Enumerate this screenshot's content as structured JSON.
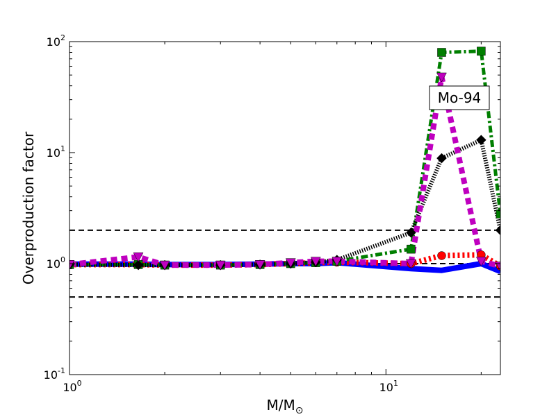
{
  "chart_data": {
    "type": "line",
    "xscale": "log",
    "yscale": "log",
    "xlim": [
      1,
      23
    ],
    "ylim": [
      0.1,
      100
    ],
    "xlabel_main": "M/M",
    "xlabel_sub": "⊙",
    "ylabel": "Overproduction factor",
    "annotation": "Mo-94",
    "xticks": [
      {
        "value": 1,
        "base": "10",
        "exp": "0"
      },
      {
        "value": 10,
        "base": "10",
        "exp": "1"
      }
    ],
    "yticks": [
      {
        "value": 0.1,
        "base": "10",
        "exp": "-1"
      },
      {
        "value": 1,
        "base": "10",
        "exp": "0"
      },
      {
        "value": 10,
        "base": "10",
        "exp": "1"
      },
      {
        "value": 100,
        "base": "10",
        "exp": "2"
      }
    ],
    "reference_lines": [
      0.5,
      1,
      2
    ],
    "series": [
      {
        "color": "#0000ff",
        "linestyle": "solid",
        "marker": "none",
        "x": [
          1,
          1.65,
          2,
          3,
          4,
          5,
          6,
          7,
          12,
          15,
          20,
          23
        ],
        "y": [
          0.99,
          0.99,
          0.98,
          0.98,
          0.99,
          1.0,
          1.0,
          1.02,
          0.9,
          0.87,
          1.0,
          0.85
        ]
      },
      {
        "color": "#ff0000",
        "linestyle": "dotted",
        "marker": "circle",
        "x": [
          1,
          1.65,
          2,
          3,
          4,
          5,
          6,
          7,
          12,
          15,
          20,
          23
        ],
        "y": [
          0.98,
          0.98,
          0.97,
          0.97,
          0.98,
          1.0,
          1.02,
          1.03,
          1.0,
          1.18,
          1.2,
          0.95
        ]
      },
      {
        "color": "#007f00",
        "linestyle": "dashdot",
        "marker": "square",
        "x": [
          1,
          1.65,
          2,
          3,
          4,
          5,
          6,
          7,
          12,
          15,
          20,
          23
        ],
        "y": [
          0.98,
          0.98,
          0.97,
          0.97,
          0.98,
          1.0,
          1.02,
          1.05,
          1.35,
          80,
          82,
          2.8
        ]
      },
      {
        "color": "#000000",
        "linestyle": "densedot",
        "marker": "diamond",
        "x": [
          1,
          1.65,
          2,
          3,
          4,
          5,
          6,
          7,
          12,
          15,
          20,
          23
        ],
        "y": [
          0.98,
          0.97,
          0.97,
          0.97,
          0.98,
          1.0,
          1.03,
          1.08,
          1.9,
          8.9,
          13,
          2.0
        ]
      },
      {
        "color": "#bf00bf",
        "linestyle": "dashed",
        "marker": "triangle-down",
        "x": [
          1,
          1.65,
          2,
          3,
          4,
          5,
          6,
          7,
          12,
          15,
          20,
          23
        ],
        "y": [
          0.98,
          1.15,
          0.97,
          0.97,
          0.98,
          1.02,
          1.05,
          1.05,
          1.0,
          48,
          1.05,
          0.95
        ]
      }
    ]
  }
}
